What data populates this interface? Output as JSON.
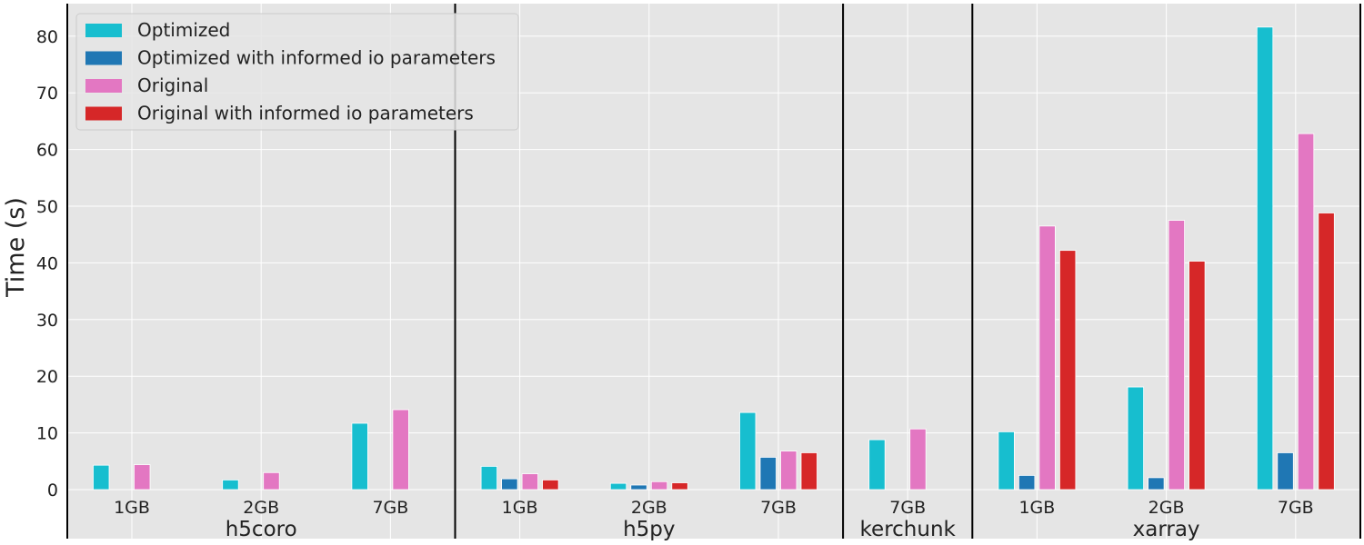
{
  "chart_data": {
    "type": "bar",
    "title": "",
    "ylabel": "Time (s)",
    "ylim": [
      -8,
      85
    ],
    "yticks": [
      0,
      10,
      20,
      30,
      40,
      50,
      60,
      70,
      80
    ],
    "grid": true,
    "legend_position": "top-left",
    "series": [
      {
        "name": "Optimized",
        "color": "#17becf"
      },
      {
        "name": "Optimized with informed io parameters",
        "color": "#1f77b4"
      },
      {
        "name": "Original",
        "color": "#e377c2"
      },
      {
        "name": "Original with informed io parameters",
        "color": "#d62728"
      }
    ],
    "groups": [
      {
        "name": "h5coro",
        "categories": [
          {
            "label": "1GB",
            "values": [
              4.3,
              null,
              4.4,
              null
            ]
          },
          {
            "label": "2GB",
            "values": [
              1.7,
              null,
              3.0,
              null
            ]
          },
          {
            "label": "7GB",
            "values": [
              11.7,
              null,
              14.1,
              null
            ]
          }
        ]
      },
      {
        "name": "h5py",
        "categories": [
          {
            "label": "1GB",
            "values": [
              4.1,
              1.9,
              2.8,
              1.7
            ]
          },
          {
            "label": "2GB",
            "values": [
              1.1,
              0.8,
              1.4,
              1.2
            ]
          },
          {
            "label": "7GB",
            "values": [
              13.6,
              5.7,
              6.8,
              6.5
            ]
          }
        ]
      },
      {
        "name": "kerchunk",
        "categories": [
          {
            "label": "7GB",
            "values": [
              8.8,
              null,
              10.7,
              null
            ]
          }
        ]
      },
      {
        "name": "xarray",
        "categories": [
          {
            "label": "1GB",
            "values": [
              10.2,
              2.5,
              46.5,
              42.2
            ]
          },
          {
            "label": "2GB",
            "values": [
              18.1,
              2.1,
              47.5,
              40.3
            ]
          },
          {
            "label": "7GB",
            "values": [
              81.6,
              6.5,
              62.8,
              48.8
            ]
          }
        ]
      }
    ]
  }
}
